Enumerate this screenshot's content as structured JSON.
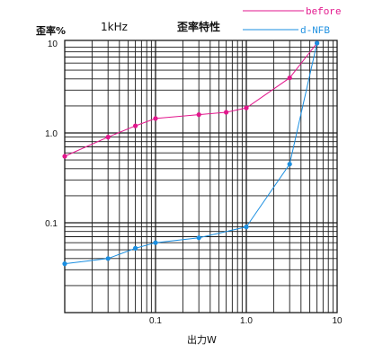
{
  "colors": {
    "before": "#e2168c",
    "d_nfb": "#1a8ee0",
    "grid": "#1a1a1a",
    "background": "#ffffff"
  },
  "chart_data": {
    "type": "line",
    "title": "歪率特性",
    "subtitle": "1kHz",
    "xlabel": "出力W",
    "ylabel": "歪率%",
    "x_scale": "log",
    "y_scale": "log",
    "xlim": [
      0.01,
      10
    ],
    "ylim": [
      0.01,
      10
    ],
    "x_ticks": [
      0.1,
      1.0,
      10
    ],
    "x_tick_labels": [
      "0.1",
      "1.0",
      "10"
    ],
    "y_ticks": [
      0.1,
      1.0,
      10
    ],
    "y_tick_labels": [
      "0.1",
      "1.0",
      "10"
    ],
    "grid": true,
    "legend": "top-right",
    "series": [
      {
        "name": "before",
        "color": "#e2168c",
        "x": [
          0.01,
          0.03,
          0.06,
          0.1,
          0.3,
          0.6,
          1.0,
          3.0,
          6.0
        ],
        "y": [
          0.55,
          0.9,
          1.2,
          1.45,
          1.6,
          1.7,
          1.9,
          4.1,
          10
        ]
      },
      {
        "name": "d-NFB",
        "color": "#1a8ee0",
        "x": [
          0.01,
          0.03,
          0.06,
          0.1,
          0.3,
          1.0,
          3.0,
          6.0
        ],
        "y": [
          0.035,
          0.04,
          0.052,
          0.06,
          0.068,
          0.09,
          0.45,
          10
        ]
      }
    ]
  }
}
